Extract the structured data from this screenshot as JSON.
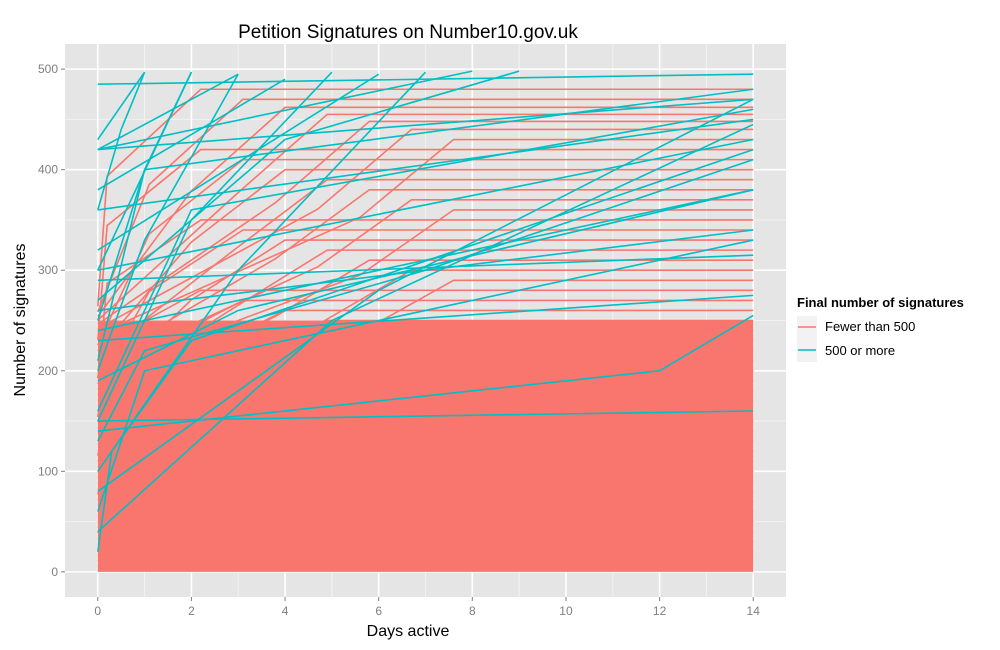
{
  "chart_data": {
    "type": "line",
    "title": "Petition Signatures on Number10.gov.uk",
    "xlabel": "Days active",
    "ylabel": "Number of signatures",
    "xlim": [
      -0.7,
      14.7
    ],
    "ylim": [
      -25,
      525
    ],
    "x_ticks": [
      0,
      2,
      4,
      6,
      8,
      10,
      12,
      14
    ],
    "y_ticks": [
      0,
      100,
      200,
      300,
      400,
      500
    ],
    "grid": true,
    "legend_position": "right",
    "legend": {
      "title": "Final number of signatures",
      "entries": [
        {
          "label": "Fewer than 500",
          "color": "#f8766d"
        },
        {
          "label": "500 or more",
          "color": "#00bfc4"
        }
      ]
    },
    "series": [
      {
        "name": "Fewer than 500",
        "color": "#f8766d",
        "final_values_sample": [
          480,
          470,
          462,
          455,
          448,
          440,
          430,
          420,
          410,
          400,
          390,
          380,
          370,
          360,
          350,
          340,
          330,
          320,
          310,
          300,
          290,
          280,
          270,
          260,
          250,
          240,
          230,
          220,
          210,
          200,
          190,
          180,
          170,
          160,
          150,
          140,
          130,
          120,
          110,
          100,
          90,
          80,
          70,
          60,
          50,
          40,
          30,
          20,
          10
        ]
      },
      {
        "name": "500 or more",
        "color": "#00bfc4",
        "lines": [
          {
            "x": [
              0,
              1
            ],
            "y": [
              430,
              497
            ]
          },
          {
            "x": [
              0,
              0.5,
              1
            ],
            "y": [
              360,
              440,
              497
            ]
          },
          {
            "x": [
              0,
              2
            ],
            "y": [
              300,
              497
            ]
          },
          {
            "x": [
              0,
              1,
              2
            ],
            "y": [
              250,
              400,
              497
            ]
          },
          {
            "x": [
              0,
              3
            ],
            "y": [
              420,
              495
            ]
          },
          {
            "x": [
              0,
              1,
              3
            ],
            "y": [
              200,
              330,
              495
            ]
          },
          {
            "x": [
              0,
              4
            ],
            "y": [
              380,
              490
            ]
          },
          {
            "x": [
              0,
              2,
              5
            ],
            "y": [
              150,
              350,
              497
            ]
          },
          {
            "x": [
              0,
              6
            ],
            "y": [
              320,
              495
            ]
          },
          {
            "x": [
              0,
              3,
              7
            ],
            "y": [
              100,
              300,
              497
            ]
          },
          {
            "x": [
              0,
              8
            ],
            "y": [
              420,
              498
            ]
          },
          {
            "x": [
              0,
              4,
              9
            ],
            "y": [
              270,
              430,
              498
            ]
          },
          {
            "x": [
              0,
              14
            ],
            "y": [
              485,
              495
            ]
          },
          {
            "x": [
              0,
              14
            ],
            "y": [
              420,
              470
            ]
          },
          {
            "x": [
              0,
              14
            ],
            "y": [
              360,
              450
            ]
          },
          {
            "x": [
              0,
              1,
              14
            ],
            "y": [
              210,
              400,
              480
            ]
          },
          {
            "x": [
              0,
              14
            ],
            "y": [
              300,
              430
            ]
          },
          {
            "x": [
              0,
              14
            ],
            "y": [
              240,
              380
            ]
          },
          {
            "x": [
              0,
              2,
              14
            ],
            "y": [
              160,
              360,
              460
            ]
          },
          {
            "x": [
              0,
              14
            ],
            "y": [
              260,
              340
            ]
          },
          {
            "x": [
              0,
              14
            ],
            "y": [
              290,
              315
            ]
          },
          {
            "x": [
              0,
              14
            ],
            "y": [
              230,
              275
            ]
          },
          {
            "x": [
              0,
              14
            ],
            "y": [
              150,
              160
            ]
          },
          {
            "x": [
              0,
              1,
              14
            ],
            "y": [
              60,
              200,
              330
            ]
          },
          {
            "x": [
              0,
              12,
              14
            ],
            "y": [
              140,
              200,
              255
            ]
          },
          {
            "x": [
              0,
              0.3,
              2,
              14
            ],
            "y": [
              20,
              120,
              230,
              420
            ]
          },
          {
            "x": [
              0,
              5,
              14
            ],
            "y": [
              40,
              250,
              445
            ]
          },
          {
            "x": [
              0,
              6,
              14
            ],
            "y": [
              80,
              280,
              470
            ]
          },
          {
            "x": [
              0,
              1,
              7,
              14
            ],
            "y": [
              130,
              220,
              300,
              410
            ]
          },
          {
            "x": [
              0,
              3,
              14
            ],
            "y": [
              190,
              260,
              380
            ]
          }
        ]
      }
    ]
  }
}
